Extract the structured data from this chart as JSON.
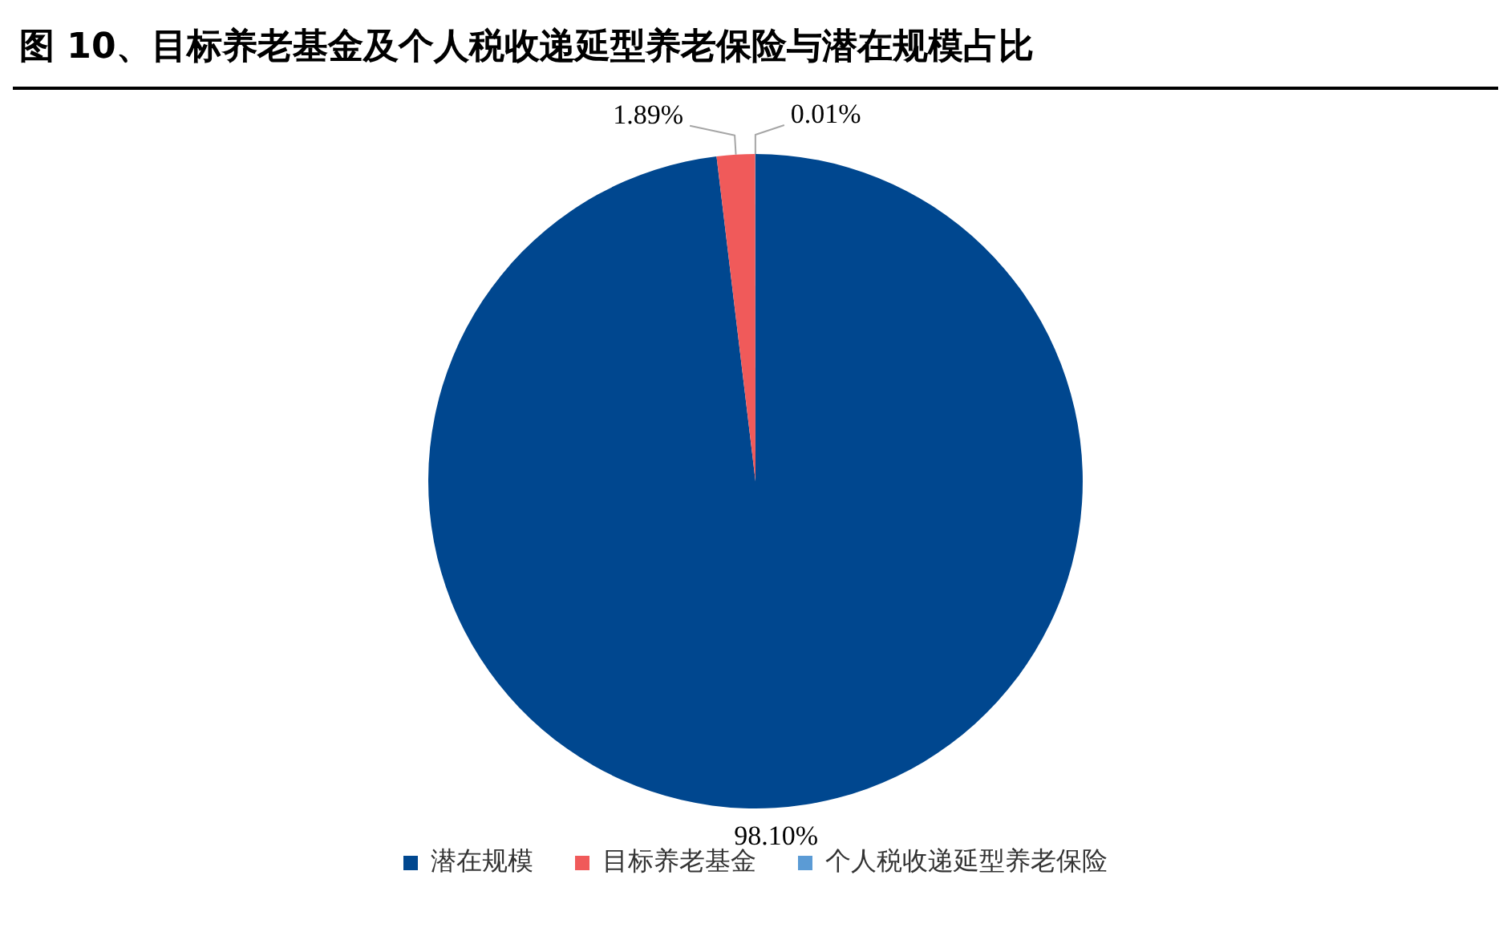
{
  "chart_data": {
    "type": "pie",
    "title": "图 10、目标养老基金及个人税收递延型养老保险与潜在规模占比",
    "categories": [
      "潜在规模",
      "目标养老基金",
      "个人税收递延型养老保险"
    ],
    "values": [
      98.1,
      1.89,
      0.01
    ],
    "colors": [
      "#00478f",
      "#f05a5a",
      "#5b9bd5"
    ],
    "value_labels": [
      "98.10%",
      "1.89%",
      "0.01%"
    ],
    "legend": "bottom"
  }
}
